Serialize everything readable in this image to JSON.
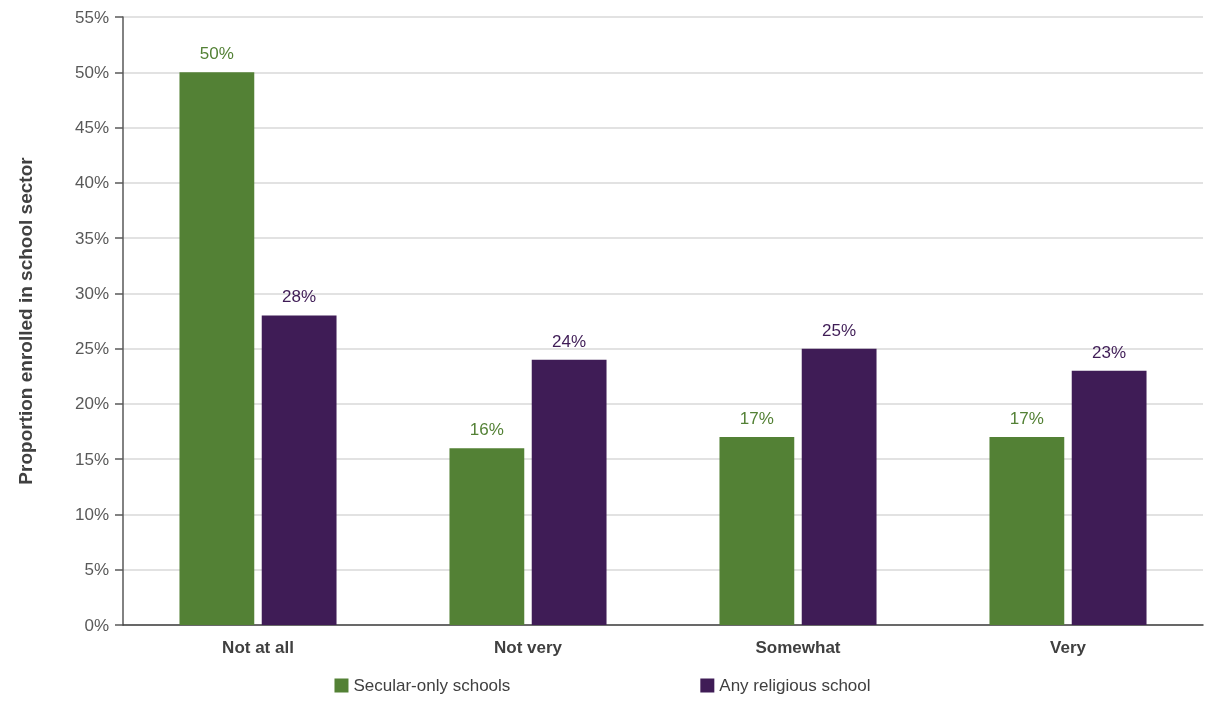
{
  "chart_data": {
    "type": "bar",
    "categories": [
      "Not at all",
      "Not very",
      "Somewhat",
      "Very"
    ],
    "series": [
      {
        "name": "Secular-only schools",
        "color": "#538135",
        "values": [
          50,
          16,
          17,
          17
        ],
        "value_labels": [
          "50%",
          "16%",
          "17%",
          "17%"
        ]
      },
      {
        "name": "Any religious school",
        "color": "#3f1c56",
        "values": [
          28,
          24,
          25,
          23
        ],
        "value_labels": [
          "28%",
          "24%",
          "25%",
          "23%"
        ]
      }
    ],
    "ylabel": "Proportion enrolled in school sector",
    "ylim": [
      0,
      55
    ],
    "yticks": [
      {
        "value": 0,
        "label": "0%"
      },
      {
        "value": 5,
        "label": "5%"
      },
      {
        "value": 10,
        "label": "10%"
      },
      {
        "value": 15,
        "label": "15%"
      },
      {
        "value": 20,
        "label": "20%"
      },
      {
        "value": 25,
        "label": "25%"
      },
      {
        "value": 30,
        "label": "30%"
      },
      {
        "value": 35,
        "label": "35%"
      },
      {
        "value": 40,
        "label": "40%"
      },
      {
        "value": 45,
        "label": "45%"
      },
      {
        "value": 50,
        "label": "50%"
      },
      {
        "value": 55,
        "label": "55%"
      }
    ],
    "grid": "y",
    "legend": "bottom"
  }
}
